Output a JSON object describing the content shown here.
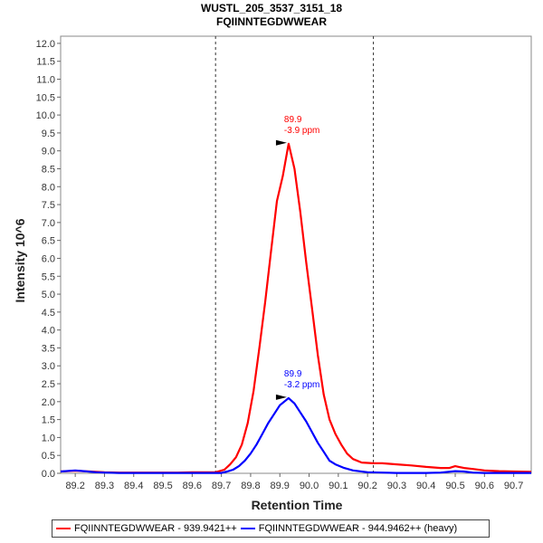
{
  "chart_data": {
    "type": "line",
    "title": "WUSTL_205_3537_3151_18",
    "subtitle": "FQIINNTEGDWWEAR",
    "xlabel": "Retention Time",
    "ylabel": "Intensity 10^6",
    "xlim": [
      89.15,
      90.76
    ],
    "ylim": [
      0,
      12.2
    ],
    "xticks": [
      "89.2",
      "89.3",
      "89.4",
      "89.5",
      "89.6",
      "89.7",
      "89.8",
      "89.9",
      "90.0",
      "90.1",
      "90.2",
      "90.3",
      "90.4",
      "90.5",
      "90.6",
      "90.7"
    ],
    "yticks": [
      "0.0",
      "0.5",
      "1.0",
      "1.5",
      "2.0",
      "2.5",
      "3.0",
      "3.5",
      "4.0",
      "4.5",
      "5.0",
      "5.5",
      "6.0",
      "6.5",
      "7.0",
      "7.5",
      "8.0",
      "8.5",
      "9.0",
      "9.5",
      "10.0",
      "10.5",
      "11.0",
      "11.5",
      "12.0"
    ],
    "integration_bounds": [
      89.68,
      90.22
    ],
    "series": [
      {
        "name": "FQIINNTEGDWWEAR - 939.9421++",
        "color": "#ff0000",
        "peak_rt": "89.9",
        "peak_ppm": "-3.9 ppm",
        "peak_value": 9.2,
        "points": [
          [
            89.15,
            0.05
          ],
          [
            89.2,
            0.07
          ],
          [
            89.25,
            0.05
          ],
          [
            89.3,
            0.03
          ],
          [
            89.35,
            0.02
          ],
          [
            89.4,
            0.02
          ],
          [
            89.45,
            0.02
          ],
          [
            89.5,
            0.02
          ],
          [
            89.55,
            0.02
          ],
          [
            89.6,
            0.03
          ],
          [
            89.65,
            0.03
          ],
          [
            89.68,
            0.03
          ],
          [
            89.71,
            0.1
          ],
          [
            89.73,
            0.25
          ],
          [
            89.75,
            0.45
          ],
          [
            89.77,
            0.8
          ],
          [
            89.79,
            1.4
          ],
          [
            89.81,
            2.3
          ],
          [
            89.83,
            3.5
          ],
          [
            89.85,
            4.8
          ],
          [
            89.87,
            6.2
          ],
          [
            89.89,
            7.6
          ],
          [
            89.91,
            8.3
          ],
          [
            89.93,
            9.2
          ],
          [
            89.95,
            8.5
          ],
          [
            89.97,
            7.3
          ],
          [
            89.99,
            5.9
          ],
          [
            90.01,
            4.6
          ],
          [
            90.03,
            3.3
          ],
          [
            90.05,
            2.2
          ],
          [
            90.07,
            1.5
          ],
          [
            90.09,
            1.1
          ],
          [
            90.11,
            0.8
          ],
          [
            90.13,
            0.55
          ],
          [
            90.15,
            0.4
          ],
          [
            90.18,
            0.3
          ],
          [
            90.22,
            0.28
          ],
          [
            90.25,
            0.28
          ],
          [
            90.3,
            0.25
          ],
          [
            90.35,
            0.22
          ],
          [
            90.4,
            0.18
          ],
          [
            90.45,
            0.15
          ],
          [
            90.48,
            0.15
          ],
          [
            90.5,
            0.2
          ],
          [
            90.53,
            0.15
          ],
          [
            90.56,
            0.12
          ],
          [
            90.6,
            0.08
          ],
          [
            90.65,
            0.06
          ],
          [
            90.7,
            0.05
          ],
          [
            90.76,
            0.04
          ]
        ]
      },
      {
        "name": "FQIINNTEGDWWEAR - 944.9462++ (heavy)",
        "color": "#0000ff",
        "peak_rt": "89.9",
        "peak_ppm": "-3.2 ppm",
        "peak_value": 2.1,
        "points": [
          [
            89.15,
            0.05
          ],
          [
            89.2,
            0.08
          ],
          [
            89.23,
            0.06
          ],
          [
            89.27,
            0.03
          ],
          [
            89.3,
            0.02
          ],
          [
            89.35,
            0.01
          ],
          [
            89.4,
            0.01
          ],
          [
            89.45,
            0.01
          ],
          [
            89.5,
            0.01
          ],
          [
            89.55,
            0.01
          ],
          [
            89.6,
            0.01
          ],
          [
            89.65,
            0.01
          ],
          [
            89.7,
            0.01
          ],
          [
            89.72,
            0.05
          ],
          [
            89.74,
            0.1
          ],
          [
            89.76,
            0.2
          ],
          [
            89.78,
            0.35
          ],
          [
            89.8,
            0.55
          ],
          [
            89.82,
            0.8
          ],
          [
            89.84,
            1.1
          ],
          [
            89.86,
            1.4
          ],
          [
            89.88,
            1.65
          ],
          [
            89.9,
            1.9
          ],
          [
            89.93,
            2.1
          ],
          [
            89.95,
            1.95
          ],
          [
            89.97,
            1.7
          ],
          [
            89.99,
            1.45
          ],
          [
            90.01,
            1.15
          ],
          [
            90.03,
            0.85
          ],
          [
            90.05,
            0.6
          ],
          [
            90.07,
            0.35
          ],
          [
            90.09,
            0.25
          ],
          [
            90.12,
            0.15
          ],
          [
            90.15,
            0.08
          ],
          [
            90.2,
            0.03
          ],
          [
            90.25,
            0.02
          ],
          [
            90.3,
            0.01
          ],
          [
            90.35,
            0.01
          ],
          [
            90.4,
            0.01
          ],
          [
            90.45,
            0.02
          ],
          [
            90.5,
            0.06
          ],
          [
            90.53,
            0.05
          ],
          [
            90.56,
            0.02
          ],
          [
            90.6,
            0.01
          ],
          [
            90.7,
            0.01
          ],
          [
            90.76,
            0.01
          ]
        ]
      }
    ],
    "grid": false,
    "legend_position": "bottom"
  }
}
